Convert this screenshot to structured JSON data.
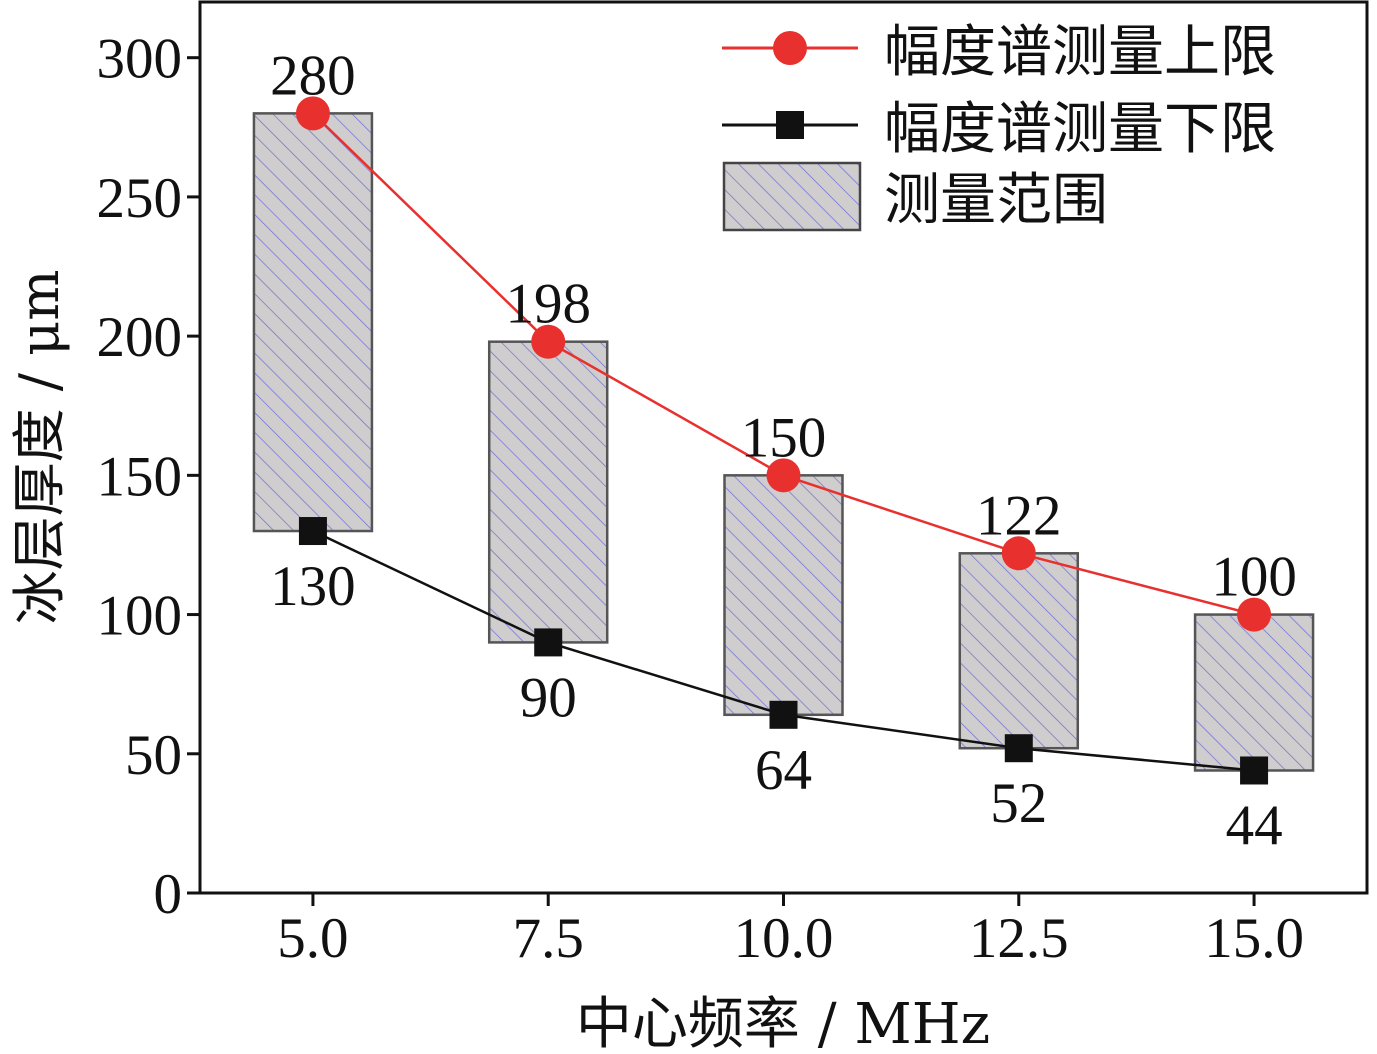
{
  "chart_data": {
    "type": "bar",
    "title": "",
    "xlabel": "中心频率 / MHz",
    "ylabel": "冰层厚度 / μm",
    "categories": [
      "5.0",
      "7.5",
      "10.0",
      "12.5",
      "15.0"
    ],
    "x": [
      5.0,
      7.5,
      10.0,
      12.5,
      15.0
    ],
    "xlim": [
      3.8,
      16.2
    ],
    "ylim": [
      0,
      320
    ],
    "yticks": [
      0,
      50,
      100,
      150,
      200,
      250,
      300
    ],
    "xticks": [
      "5.0",
      "7.5",
      "10.0",
      "12.5",
      "15.0"
    ],
    "grid": false,
    "legend_position": "top-right",
    "series": [
      {
        "name": "幅度谱测量上限",
        "kind": "line",
        "marker": "circle",
        "color": "#e8312f",
        "values": [
          280,
          198,
          150,
          122,
          100
        ],
        "labels": [
          "280",
          "198",
          "150",
          "122",
          "100"
        ]
      },
      {
        "name": "幅度谱测量下限",
        "kind": "line",
        "marker": "square",
        "color": "#111111",
        "values": [
          130,
          90,
          64,
          52,
          44
        ],
        "labels": [
          "130",
          "90",
          "64",
          "52",
          "44"
        ]
      }
    ],
    "range": {
      "name": "测量范围",
      "kind": "floating-bar",
      "fill": "#cfcdcd",
      "hatch": "#6d6fd6",
      "low": [
        130,
        90,
        64,
        52,
        44
      ],
      "high": [
        280,
        198,
        150,
        122,
        100
      ]
    }
  }
}
